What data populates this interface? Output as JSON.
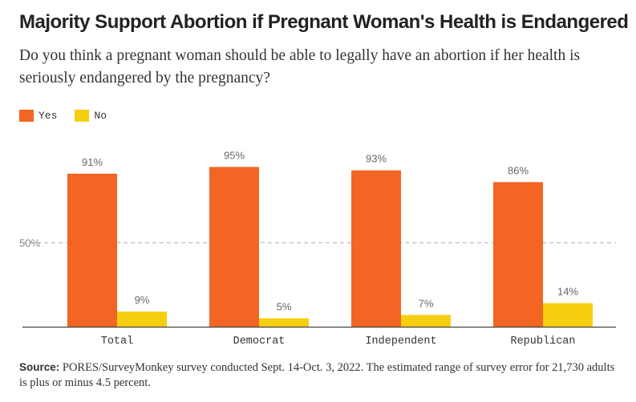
{
  "title": "Majority Support Abortion if Pregnant Woman's Health is Endangered",
  "subtitle": "Do you think a pregnant woman should be able to legally have an abortion if her health is seriously endangered by the pregnancy?",
  "source_label": "Source:",
  "source_text": "PORES/SurveyMonkey survey conducted Sept. 14-Oct. 3, 2022. The estimated range of survey error for 21,730 adults is plus or minus 4.5 percent.",
  "colors": {
    "yes": "#f26522",
    "no": "#f5cf10",
    "axis": "#444444",
    "refline": "#bbbbbb",
    "label": "#666666"
  },
  "chart_data": {
    "type": "bar",
    "categories": [
      "Total",
      "Democrat",
      "Independent",
      "Republican"
    ],
    "series": [
      {
        "name": "Yes",
        "values": [
          91,
          95,
          93,
          86
        ],
        "labels": [
          "91%",
          "95%",
          "93%",
          "86%"
        ]
      },
      {
        "name": "No",
        "values": [
          9,
          5,
          7,
          14
        ],
        "labels": [
          "9%",
          "5%",
          "7%",
          "14%"
        ]
      }
    ],
    "reference_line": {
      "value": 50,
      "label": "50%"
    },
    "ylim": [
      0,
      100
    ],
    "legend_position": "top-left",
    "grid": false
  }
}
